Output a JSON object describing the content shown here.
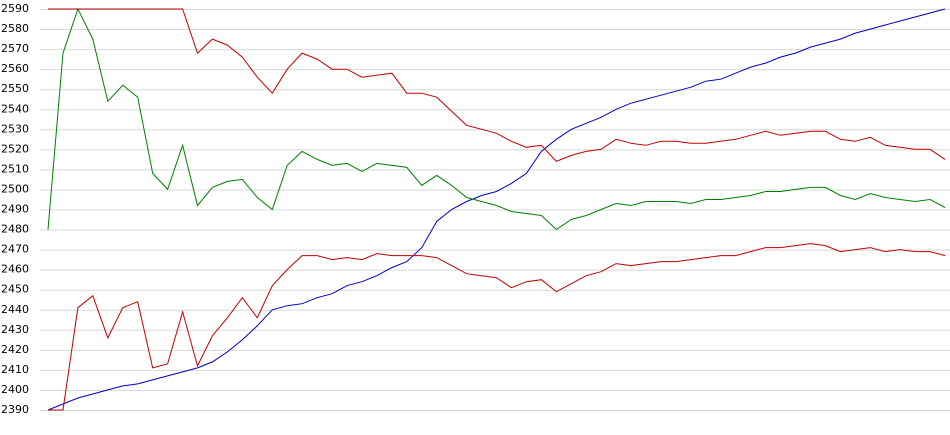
{
  "chart_data": {
    "type": "line",
    "categories": [
      null,
      null,
      null,
      null,
      null,
      null,
      null,
      null,
      null,
      null,
      null,
      null,
      null,
      null,
      null,
      null,
      null,
      null,
      null,
      null,
      null,
      null,
      null,
      null,
      null,
      null,
      null,
      null,
      null,
      null,
      null,
      null,
      null,
      null,
      null,
      null,
      null,
      null,
      null,
      null,
      null,
      null,
      null,
      null,
      null,
      null,
      null,
      null,
      null,
      null,
      null,
      null,
      null,
      null,
      null,
      null,
      null,
      null,
      null,
      null,
      null
    ],
    "ylim": [
      2390,
      2590
    ],
    "yticks": [
      2390,
      2400,
      2410,
      2420,
      2430,
      2440,
      2450,
      2460,
      2470,
      2480,
      2490,
      2500,
      2510,
      2520,
      2530,
      2540,
      2550,
      2560,
      2570,
      2580,
      2590
    ],
    "grid": true,
    "series": [
      {
        "color": "#0000c0",
        "values": [
          2390,
          2393,
          2396,
          2398,
          2400,
          2402,
          2403,
          2405,
          2407,
          2409,
          2411,
          2414,
          2419,
          2425,
          2432,
          2440,
          2442,
          2443,
          2446,
          2448,
          2452,
          2454,
          2457,
          2461,
          2464,
          2471,
          2484,
          2490,
          2494,
          2497,
          2499,
          2503,
          2508,
          2519,
          2525,
          2530,
          2533,
          2536,
          2540,
          2543,
          2545,
          2547,
          2549,
          2551,
          2554,
          2555,
          2558,
          2561,
          2563,
          2566,
          2568,
          2571,
          2573,
          2575,
          2578,
          2580,
          2582,
          2584,
          2586,
          2588,
          2590
        ]
      },
      {
        "color": "#008000",
        "values": [
          2480,
          2568,
          2590,
          2575,
          2544,
          2552,
          2546,
          2508,
          2500,
          2522,
          2492,
          2501,
          2504,
          2505,
          2496,
          2490,
          2512,
          2519,
          2515,
          2512,
          2513,
          2509,
          2513,
          2512,
          2511,
          2502,
          2507,
          2502,
          2496,
          2494,
          2492,
          2489,
          2488,
          2487,
          2480,
          2485,
          2487,
          2490,
          2493,
          2492,
          2494,
          2494,
          2494,
          2493,
          2495,
          2495,
          2496,
          2497,
          2499,
          2499,
          2500,
          2501,
          2501,
          2497,
          2495,
          2498,
          2496,
          2495,
          2494,
          2495,
          2491
        ]
      },
      {
        "color": "#c00000",
        "values": [
          2590,
          2590,
          2590,
          2590,
          2590,
          2590,
          2590,
          2590,
          2590,
          2590,
          2568,
          2575,
          2572,
          2566,
          2556,
          2548,
          2560,
          2568,
          2565,
          2560,
          2560,
          2556,
          2557,
          2558,
          2548,
          2548,
          2546,
          2539,
          2532,
          2530,
          2528,
          2524,
          2521,
          2522,
          2514,
          2517,
          2519,
          2520,
          2525,
          2523,
          2522,
          2524,
          2524,
          2523,
          2523,
          2524,
          2525,
          2527,
          2529,
          2527,
          2528,
          2529,
          2529,
          2525,
          2524,
          2526,
          2522,
          2521,
          2520,
          2520,
          2515
        ]
      },
      {
        "color": "#c00000",
        "values": [
          2390,
          2390,
          2441,
          2447,
          2426,
          2441,
          2444,
          2411,
          2413,
          2439,
          2412,
          2427,
          2436,
          2446,
          2436,
          2452,
          2460,
          2467,
          2467,
          2465,
          2466,
          2465,
          2468,
          2467,
          2467,
          2467,
          2466,
          2462,
          2458,
          2457,
          2456,
          2451,
          2454,
          2455,
          2449,
          2453,
          2457,
          2459,
          2463,
          2462,
          2463,
          2464,
          2464,
          2465,
          2466,
          2467,
          2467,
          2469,
          2471,
          2471,
          2472,
          2473,
          2472,
          2469,
          2470,
          2471,
          2469,
          2470,
          2469,
          2469,
          2467
        ]
      }
    ]
  }
}
